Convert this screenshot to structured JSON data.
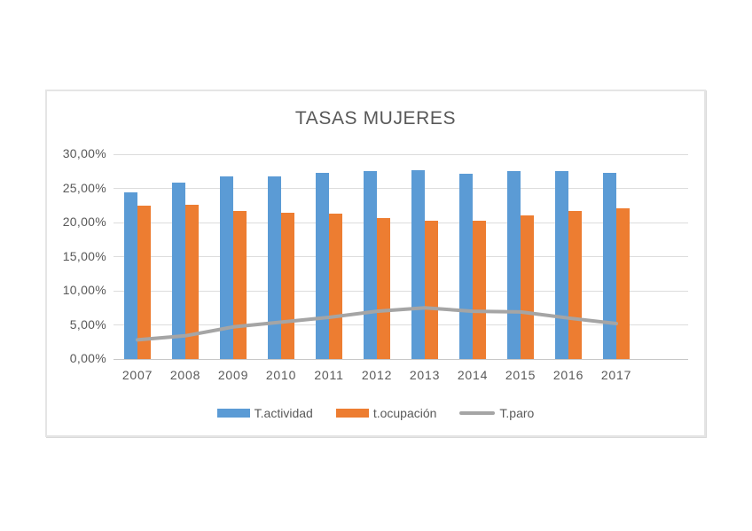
{
  "chart_data": {
    "type": "bar",
    "title": "TASAS MUJERES",
    "categories": [
      "2007",
      "2008",
      "2009",
      "2010",
      "2011",
      "2012",
      "2013",
      "2014",
      "2015",
      "2016",
      "2017"
    ],
    "series": [
      {
        "name": "T.actividad",
        "type": "bar",
        "color": "#5B9BD5",
        "values": [
          24.4,
          25.8,
          26.7,
          26.8,
          27.3,
          27.5,
          27.7,
          27.2,
          27.5,
          27.5,
          27.3
        ]
      },
      {
        "name": "t.ocupación",
        "type": "bar",
        "color": "#ED7D31",
        "values": [
          22.5,
          22.6,
          21.7,
          21.4,
          21.3,
          20.7,
          20.3,
          20.3,
          21.0,
          21.7,
          22.1
        ]
      },
      {
        "name": "T.paro",
        "type": "line",
        "color": "#A5A5A5",
        "values": [
          2.8,
          3.4,
          4.7,
          5.4,
          6.1,
          7.0,
          7.5,
          7.0,
          6.9,
          6.0,
          5.2
        ]
      }
    ],
    "xlabel": "",
    "ylabel": "",
    "ylim": [
      0,
      30
    ],
    "y_axis": {
      "tick_labels": [
        "30,00%",
        "25,00%",
        "20,00%",
        "15,00%",
        "10,00%",
        "5,00%",
        "0,00%"
      ],
      "tick_values": [
        30,
        25,
        20,
        15,
        10,
        5,
        0
      ],
      "format": "percent-comma"
    },
    "grid": true,
    "legend_position": "bottom",
    "extra_right_category_slots": 1,
    "colors": {
      "title_text": "#595959",
      "axis_text": "#595959",
      "gridline": "#DCDCDC",
      "chart_border": "#E5E5E5",
      "background": "#FFFFFF"
    }
  },
  "legend": {
    "items": [
      {
        "label": "T.actividad"
      },
      {
        "label": "t.ocupación"
      },
      {
        "label": "T.paro"
      }
    ]
  }
}
